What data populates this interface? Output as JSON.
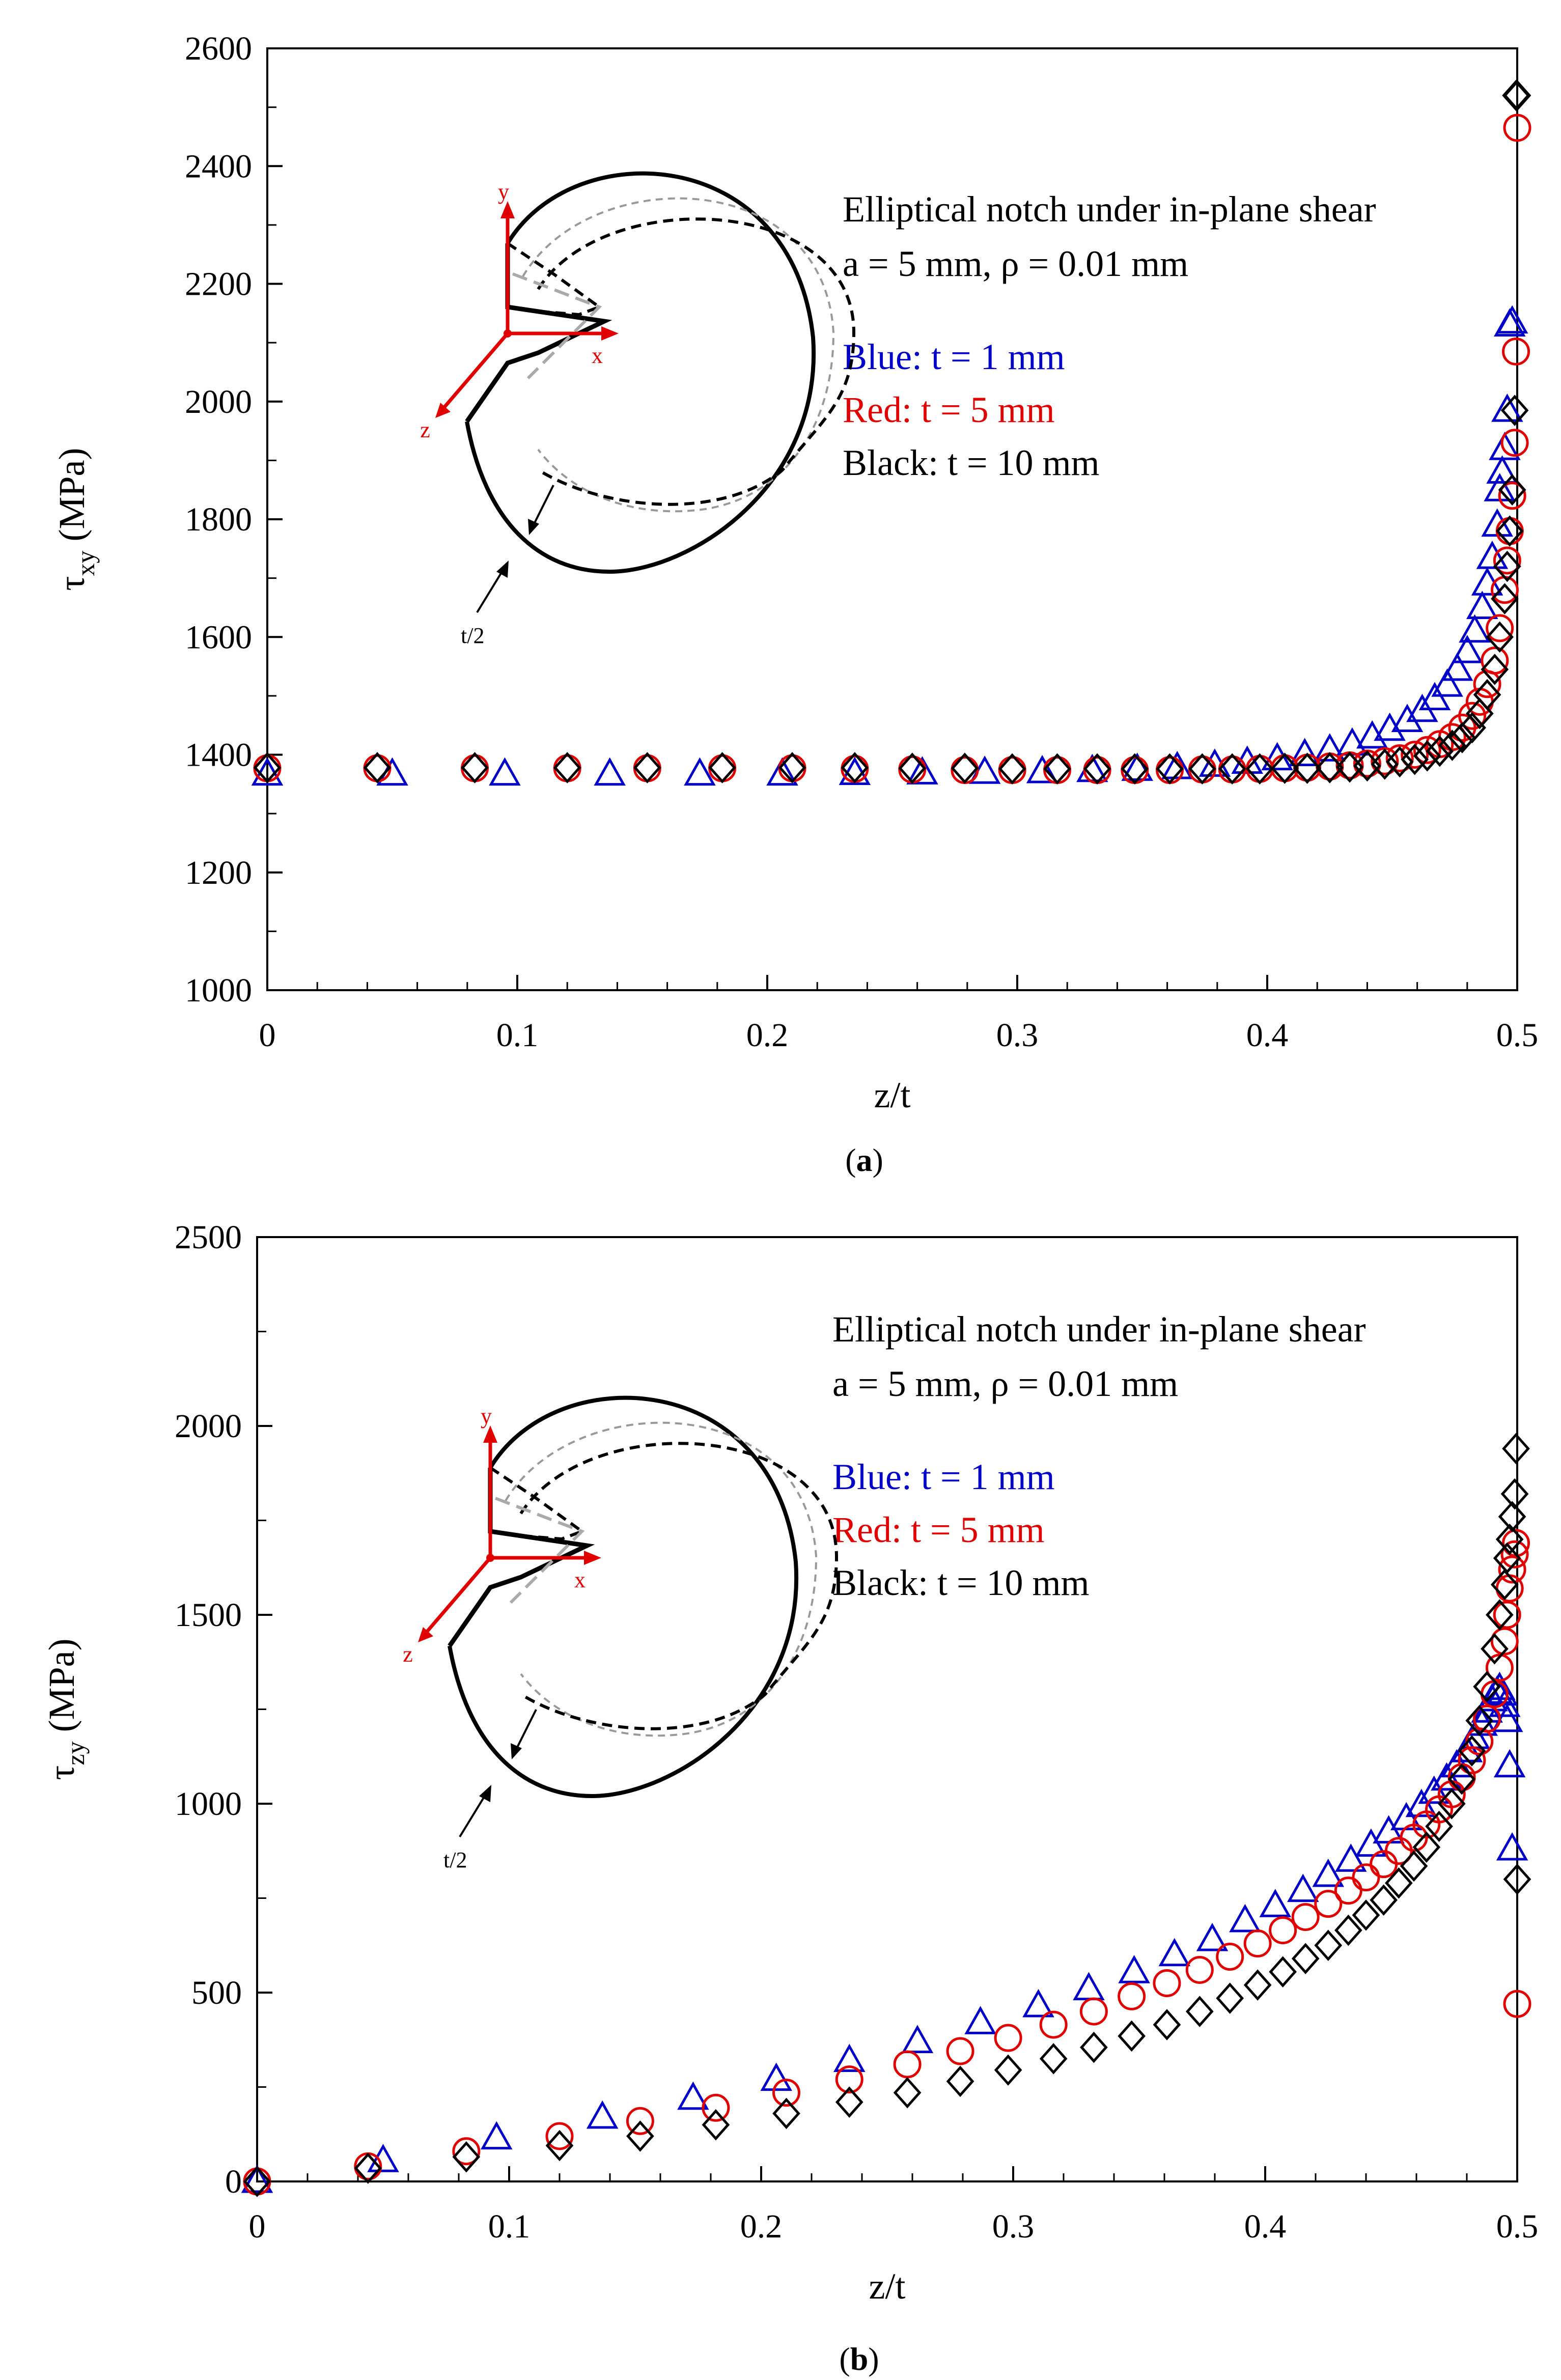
{
  "chart_data": [
    {
      "type": "scatter",
      "panel_caption": {
        "open": "(",
        "letter": "a",
        "close": ")"
      },
      "ylabel": {
        "symbol": "τ",
        "sub": "xy",
        "unit": " (MPa)"
      },
      "xlabel": "z/t",
      "xlim": [
        0,
        0.5
      ],
      "ylim": [
        1000,
        2600
      ],
      "xticks": [
        0,
        0.1,
        0.2,
        0.3,
        0.4,
        0.5
      ],
      "xtick_labels": [
        "0",
        "0.1",
        "0.2",
        "0.3",
        "0.4",
        "0.5"
      ],
      "yticks": [
        1000,
        1200,
        1400,
        1600,
        1800,
        2000,
        2200,
        2400,
        2600
      ],
      "ytick_labels": [
        "1000",
        "1200",
        "1400",
        "1600",
        "1800",
        "2000",
        "2200",
        "2400",
        "2600"
      ],
      "annotation": {
        "title": "Elliptical notch under in-plane shear",
        "params": "a = 5 mm, ρ = 0.01 mm",
        "legend": [
          {
            "text": "Blue: t = 1 mm",
            "color": "#0000c8"
          },
          {
            "text": "Red: t = 5 mm",
            "color": "#e00000"
          },
          {
            "text": "Black: t = 10 mm",
            "color": "#000000"
          }
        ]
      },
      "inset_labels": {
        "y": "y",
        "x": "x",
        "z": "z",
        "t": "t/2"
      },
      "series": [
        {
          "name": "t = 1 mm",
          "marker": "triangle",
          "color": "#0000c8",
          "x": [
            0,
            0.05,
            0.095,
            0.137,
            0.173,
            0.206,
            0.235,
            0.262,
            0.287,
            0.31,
            0.33,
            0.348,
            0.364,
            0.379,
            0.392,
            0.404,
            0.415,
            0.425,
            0.434,
            0.442,
            0.449,
            0.456,
            0.462,
            0.467,
            0.472,
            0.476,
            0.48,
            0.483,
            0.486,
            0.488,
            0.49,
            0.492,
            0.493,
            0.494,
            0.495,
            0.496,
            0.497,
            0.498
          ],
          "y": [
            1367,
            1367,
            1367,
            1367,
            1367,
            1367,
            1368,
            1369,
            1370,
            1371,
            1373,
            1375,
            1378,
            1382,
            1387,
            1393,
            1400,
            1408,
            1418,
            1430,
            1443,
            1458,
            1475,
            1495,
            1518,
            1545,
            1575,
            1610,
            1650,
            1690,
            1735,
            1790,
            1850,
            1880,
            1920,
            1985,
            2130,
            2135
          ]
        },
        {
          "name": "t = 5 mm",
          "marker": "circle",
          "color": "#e00000",
          "x": [
            0,
            0.044,
            0.083,
            0.12,
            0.152,
            0.182,
            0.21,
            0.235,
            0.258,
            0.279,
            0.298,
            0.316,
            0.332,
            0.347,
            0.361,
            0.374,
            0.386,
            0.397,
            0.407,
            0.416,
            0.425,
            0.433,
            0.44,
            0.447,
            0.453,
            0.459,
            0.464,
            0.469,
            0.474,
            0.478,
            0.482,
            0.485,
            0.488,
            0.491,
            0.493,
            0.495,
            0.496,
            0.497,
            0.498,
            0.499,
            0.4995,
            0.5
          ],
          "y": [
            1377,
            1377,
            1377,
            1377,
            1377,
            1377,
            1377,
            1376,
            1375,
            1374,
            1374,
            1374,
            1374,
            1374,
            1374,
            1375,
            1375,
            1376,
            1377,
            1378,
            1380,
            1382,
            1385,
            1389,
            1394,
            1400,
            1408,
            1418,
            1430,
            1446,
            1466,
            1490,
            1520,
            1560,
            1615,
            1680,
            1730,
            1780,
            1840,
            1930,
            2085,
            2465
          ]
        },
        {
          "name": "t = 10 mm",
          "marker": "diamond",
          "color": "#000000",
          "x": [
            0,
            0.044,
            0.083,
            0.12,
            0.152,
            0.182,
            0.21,
            0.235,
            0.258,
            0.279,
            0.298,
            0.316,
            0.332,
            0.347,
            0.361,
            0.374,
            0.386,
            0.397,
            0.407,
            0.416,
            0.425,
            0.433,
            0.44,
            0.447,
            0.453,
            0.459,
            0.464,
            0.469,
            0.474,
            0.478,
            0.482,
            0.485,
            0.488,
            0.491,
            0.493,
            0.495,
            0.496,
            0.497,
            0.498,
            0.499,
            0.4995,
            0.5
          ],
          "y": [
            1378,
            1378,
            1378,
            1378,
            1378,
            1378,
            1378,
            1378,
            1377,
            1377,
            1376,
            1376,
            1376,
            1376,
            1376,
            1376,
            1376,
            1376,
            1377,
            1377,
            1378,
            1379,
            1381,
            1384,
            1388,
            1392,
            1398,
            1406,
            1416,
            1429,
            1446,
            1470,
            1502,
            1545,
            1600,
            1665,
            1720,
            1780,
            1850,
            1985,
            2520,
            2520
          ]
        }
      ]
    },
    {
      "type": "scatter",
      "panel_caption": {
        "open": "(",
        "letter": "b",
        "close": ")"
      },
      "ylabel": {
        "symbol": "τ",
        "sub": "zy",
        "unit": " (MPa)"
      },
      "xlabel": "z/t",
      "xlim": [
        0,
        0.5
      ],
      "ylim": [
        0,
        2500
      ],
      "xticks": [
        0,
        0.1,
        0.2,
        0.3,
        0.4,
        0.5
      ],
      "xtick_labels": [
        "0",
        "0.1",
        "0.2",
        "0.3",
        "0.4",
        "0.5"
      ],
      "yticks": [
        0,
        500,
        1000,
        1500,
        2000,
        2500
      ],
      "ytick_labels": [
        "0",
        "500",
        "1000",
        "1500",
        "2000",
        "2500"
      ],
      "annotation": {
        "title": "Elliptical notch under in-plane shear",
        "params": "a = 5 mm, ρ = 0.01 mm",
        "legend": [
          {
            "text": "Blue: t = 1 mm",
            "color": "#0000c8"
          },
          {
            "text": "Red: t = 5 mm",
            "color": "#e00000"
          },
          {
            "text": "Black: t = 10 mm",
            "color": "#000000"
          }
        ]
      },
      "inset_labels": {
        "y": "y",
        "x": "x",
        "z": "z",
        "t": "t/2"
      },
      "series": [
        {
          "name": "t = 1 mm",
          "marker": "triangle",
          "color": "#0000c8",
          "x": [
            0,
            0.05,
            0.095,
            0.137,
            0.173,
            0.206,
            0.235,
            0.262,
            0.287,
            0.31,
            0.33,
            0.348,
            0.364,
            0.379,
            0.392,
            0.404,
            0.415,
            0.425,
            0.434,
            0.442,
            0.449,
            0.456,
            0.462,
            0.467,
            0.472,
            0.476,
            0.48,
            0.483,
            0.486,
            0.488,
            0.49,
            0.492,
            0.493,
            0.494,
            0.495,
            0.496,
            0.497,
            0.498
          ],
          "y": [
            0,
            55,
            115,
            170,
            220,
            270,
            320,
            370,
            420,
            465,
            510,
            555,
            600,
            640,
            690,
            730,
            770,
            810,
            850,
            890,
            925,
            960,
            995,
            1030,
            1065,
            1100,
            1140,
            1175,
            1210,
            1245,
            1275,
            1295,
            1305,
            1290,
            1260,
            1220,
            1100,
            880
          ]
        },
        {
          "name": "t = 5 mm",
          "marker": "circle",
          "color": "#e00000",
          "x": [
            0,
            0.044,
            0.083,
            0.12,
            0.152,
            0.182,
            0.21,
            0.235,
            0.258,
            0.279,
            0.298,
            0.316,
            0.332,
            0.347,
            0.361,
            0.374,
            0.386,
            0.397,
            0.407,
            0.416,
            0.425,
            0.433,
            0.44,
            0.447,
            0.453,
            0.459,
            0.464,
            0.469,
            0.474,
            0.478,
            0.482,
            0.485,
            0.488,
            0.491,
            0.493,
            0.495,
            0.496,
            0.497,
            0.498,
            0.499,
            0.4995,
            0.5
          ],
          "y": [
            0,
            40,
            80,
            120,
            160,
            195,
            235,
            270,
            310,
            345,
            380,
            415,
            450,
            490,
            525,
            560,
            595,
            630,
            665,
            700,
            735,
            770,
            805,
            840,
            875,
            910,
            945,
            985,
            1025,
            1070,
            1115,
            1165,
            1225,
            1290,
            1360,
            1430,
            1500,
            1570,
            1620,
            1660,
            1690,
            470
          ]
        },
        {
          "name": "t = 10 mm",
          "marker": "diamond",
          "color": "#000000",
          "x": [
            0,
            0.044,
            0.083,
            0.12,
            0.152,
            0.182,
            0.21,
            0.235,
            0.258,
            0.279,
            0.298,
            0.316,
            0.332,
            0.347,
            0.361,
            0.374,
            0.386,
            0.397,
            0.407,
            0.416,
            0.425,
            0.433,
            0.44,
            0.447,
            0.453,
            0.459,
            0.464,
            0.469,
            0.474,
            0.478,
            0.482,
            0.485,
            0.488,
            0.491,
            0.493,
            0.495,
            0.496,
            0.497,
            0.498,
            0.499,
            0.4995,
            0.5
          ],
          "y": [
            0,
            35,
            65,
            95,
            120,
            150,
            180,
            210,
            235,
            265,
            295,
            325,
            355,
            385,
            415,
            450,
            485,
            520,
            555,
            590,
            625,
            665,
            705,
            745,
            790,
            835,
            885,
            940,
            1000,
            1065,
            1140,
            1220,
            1310,
            1410,
            1500,
            1580,
            1650,
            1700,
            1760,
            1820,
            1940,
            800
          ]
        }
      ]
    }
  ]
}
